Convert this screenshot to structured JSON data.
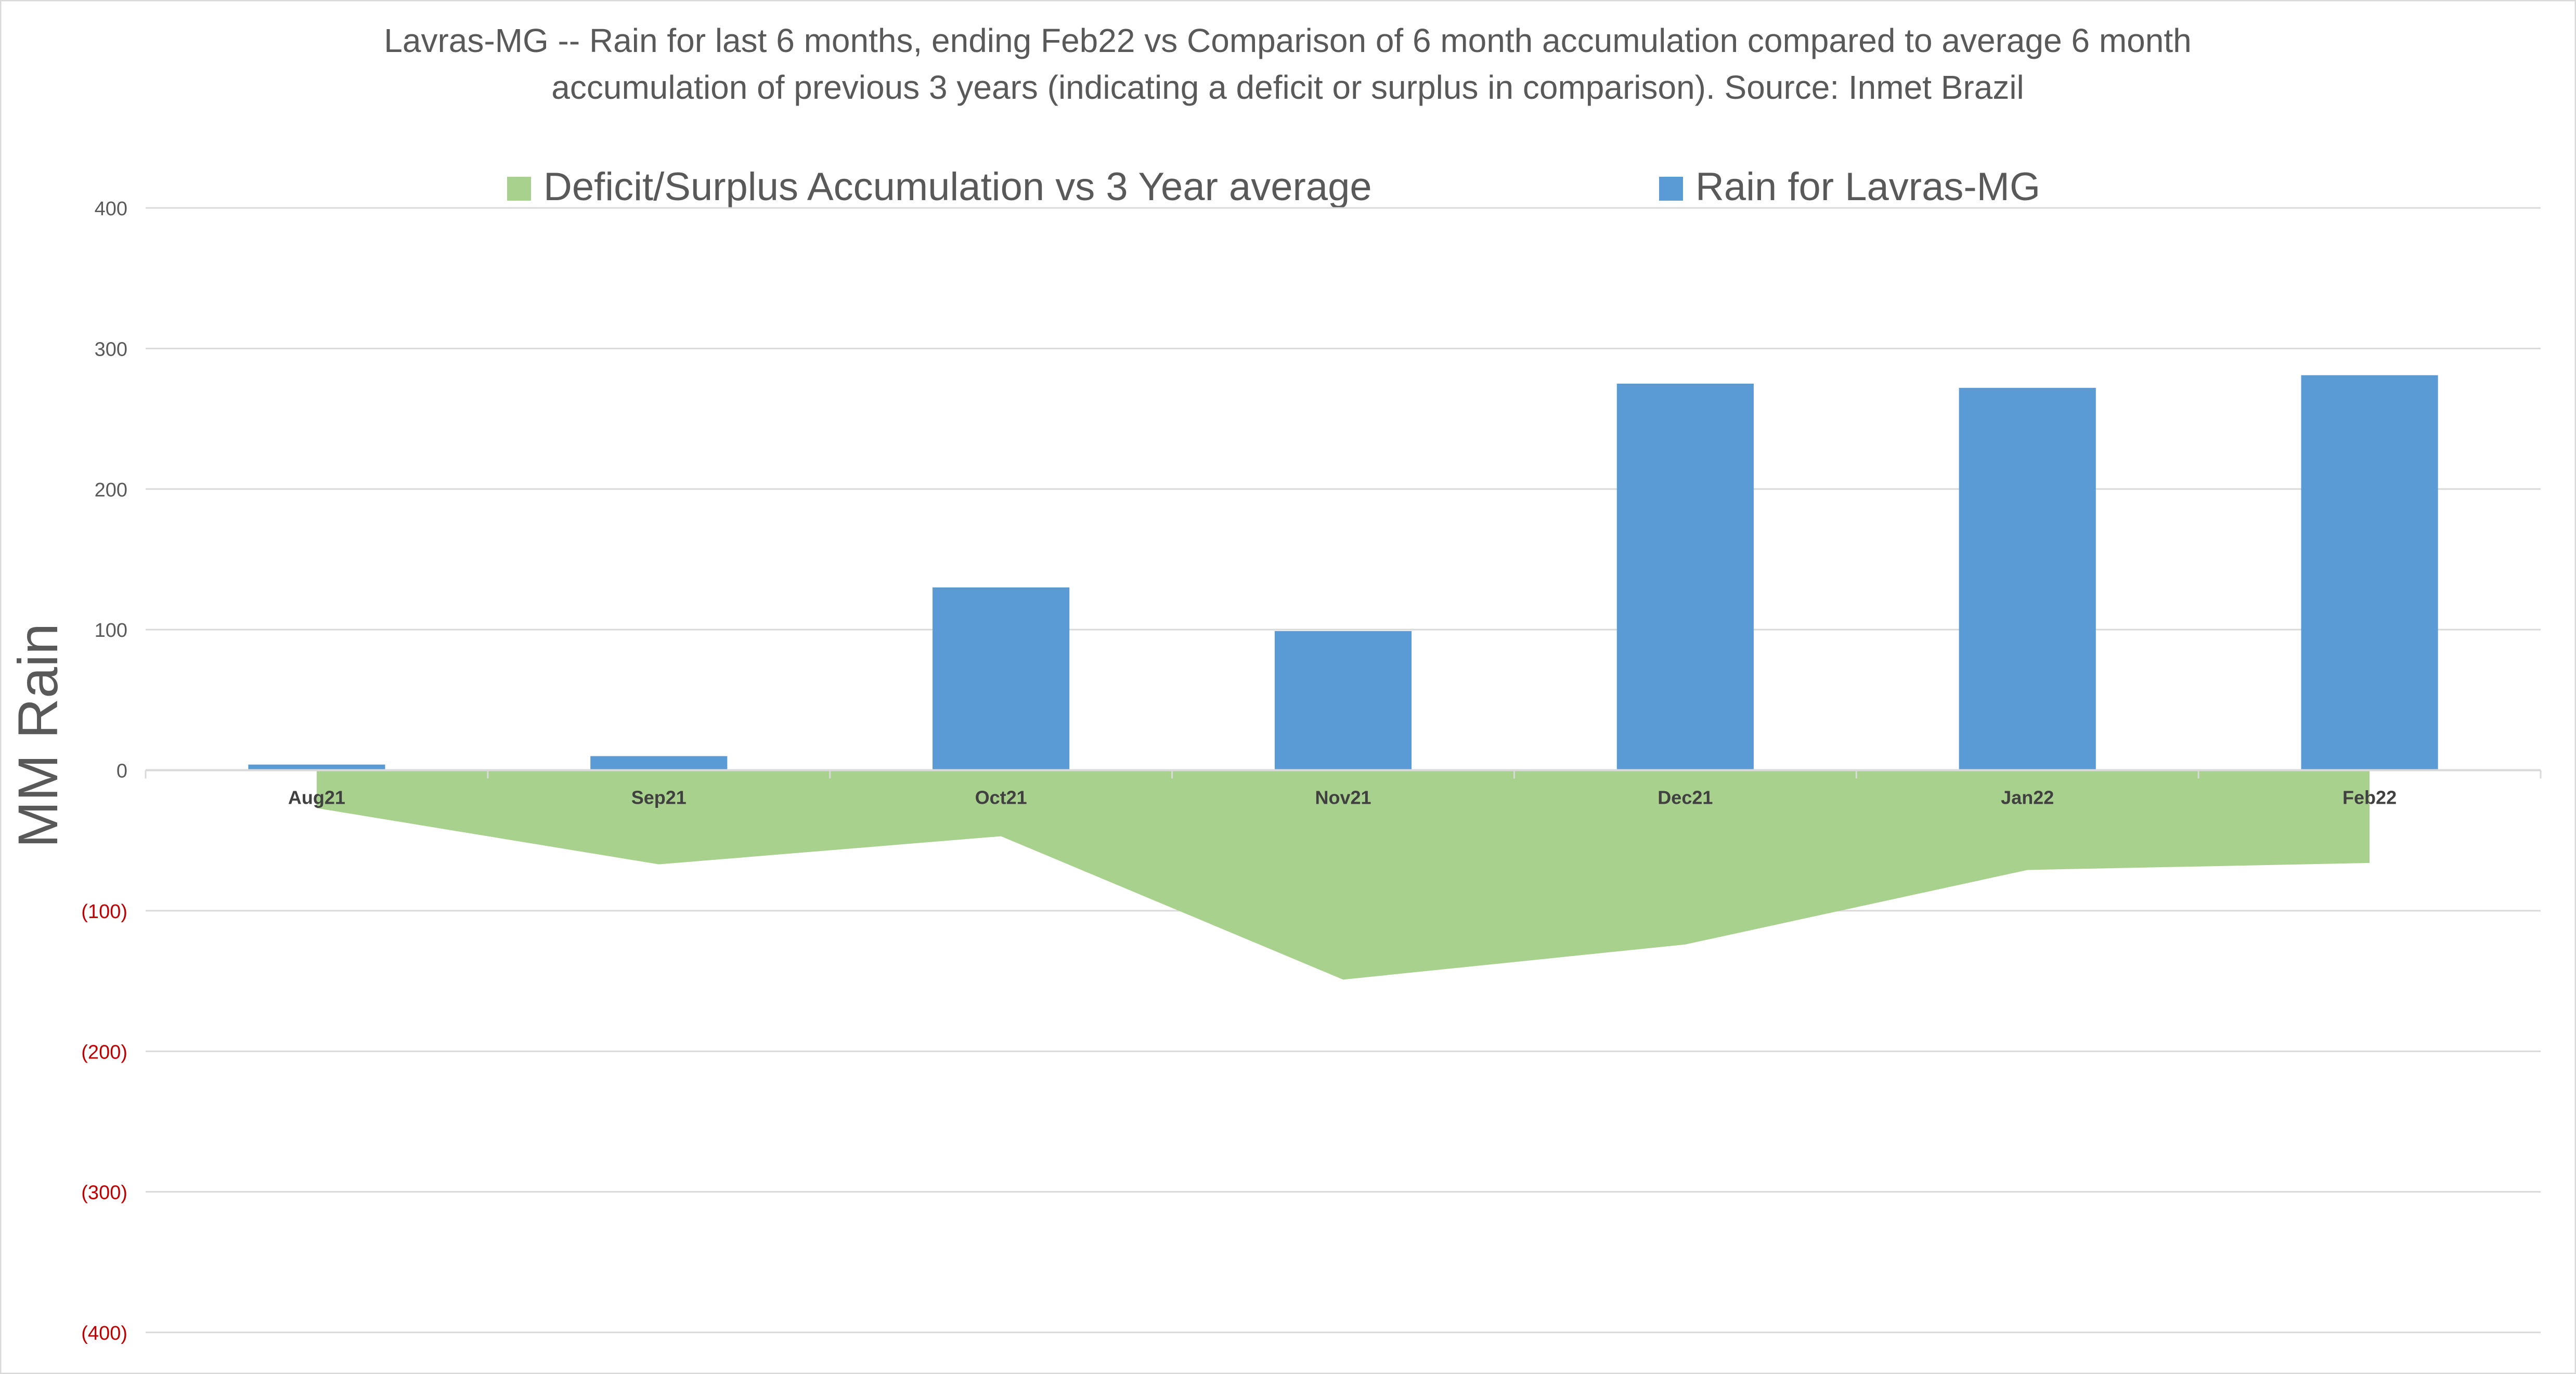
{
  "chart_data": {
    "type": "bar",
    "title": "Lavras-MG -- Rain for last 6 months, ending Feb22  vs Comparison of 6 month accumulation compared to average 6 month accumulation of previous 3 years  (indicating a deficit or surplus in comparison). Source: Inmet Brazil",
    "title_lines": [
      "Lavras-MG -- Rain for last 6 months, ending Feb22  vs Comparison of 6 month accumulation compared to average 6 month",
      "accumulation of previous 3 years  (indicating a deficit or surplus in comparison). Source: Inmet Brazil"
    ],
    "xlabel": "",
    "ylabel": "MM Rain",
    "ylim": [
      -400,
      400
    ],
    "y_ticks": [
      400,
      300,
      200,
      100,
      0,
      -100,
      -200,
      -300,
      -400
    ],
    "y_tick_labels": [
      "400",
      "300",
      "200",
      "100",
      "0",
      "(100)",
      "(200)",
      "(300)",
      "(400)"
    ],
    "categories": [
      "Aug21",
      "Sep21",
      "Oct21",
      "Nov21",
      "Dec21",
      "Jan22",
      "Feb22"
    ],
    "grid": true,
    "legend_position": "top",
    "series": [
      {
        "name": "Deficit/Surplus Accumulation vs 3 Year average",
        "type": "area",
        "color": "#a9d18e",
        "values": [
          -27,
          -67,
          -47,
          -149,
          -124,
          -71,
          -66
        ]
      },
      {
        "name": "Rain for Lavras-MG",
        "type": "bar",
        "color": "#5b9bd5",
        "values": [
          4,
          10,
          130,
          99,
          275,
          272,
          281
        ]
      }
    ],
    "colors": {
      "negative_tick": "#c00000",
      "positive_tick": "#595959",
      "grid": "#d9d9d9",
      "title": "#595959"
    }
  }
}
